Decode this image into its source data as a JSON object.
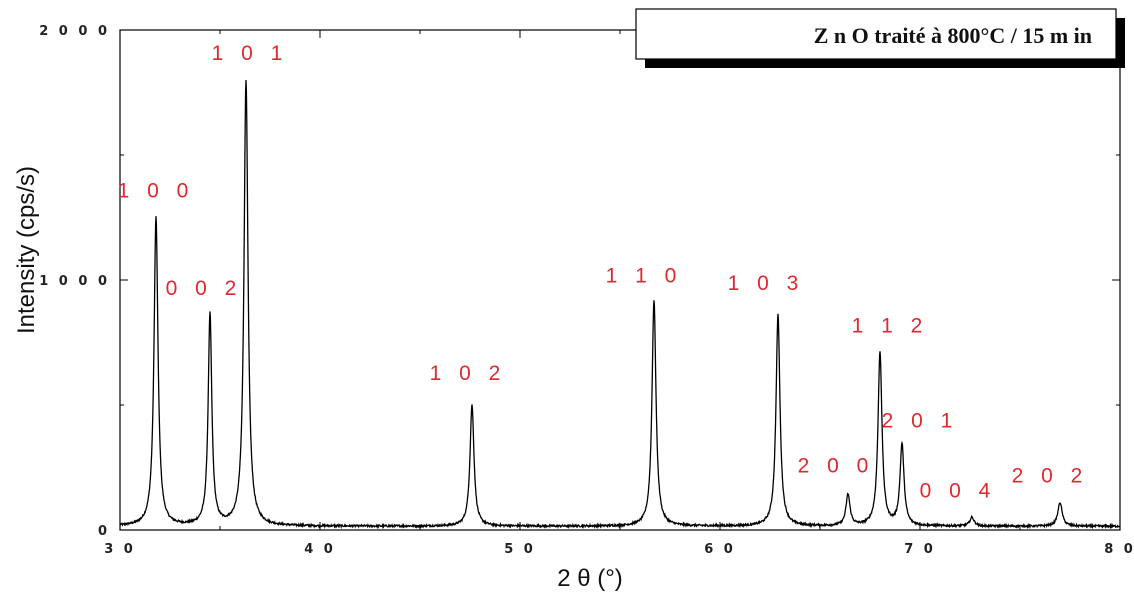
{
  "chart_data": {
    "type": "line",
    "title": "Z n O traité à 800°C / 15 m in",
    "xlabel": "2 θ  (°)",
    "ylabel": "Intensity (cps/s)",
    "xlim": [
      30,
      80
    ],
    "ylim": [
      0,
      2000
    ],
    "x_ticks": [
      30,
      40,
      50,
      60,
      70,
      80
    ],
    "x_tick_labels": [
      "3 0",
      "4 0",
      "5 0",
      "6 0",
      "7 0",
      "8 0"
    ],
    "y_ticks": [
      0,
      1000,
      2000
    ],
    "y_tick_labels": [
      "0",
      "1 0 0 0",
      "2 0 0 0"
    ],
    "grid": false,
    "baseline": 15,
    "peaks": [
      {
        "label": "100",
        "x": 31.8,
        "y": 1250,
        "width": 0.12
      },
      {
        "label": "002",
        "x": 34.5,
        "y": 860,
        "width": 0.11
      },
      {
        "label": "101",
        "x": 36.3,
        "y": 1800,
        "width": 0.12
      },
      {
        "label": "102",
        "x": 47.6,
        "y": 500,
        "width": 0.12
      },
      {
        "label": "110",
        "x": 56.7,
        "y": 920,
        "width": 0.12
      },
      {
        "label": "103",
        "x": 62.9,
        "y": 860,
        "width": 0.12
      },
      {
        "label": "200",
        "x": 66.4,
        "y": 140,
        "width": 0.12
      },
      {
        "label": "112",
        "x": 68.0,
        "y": 710,
        "width": 0.12
      },
      {
        "label": "201",
        "x": 69.1,
        "y": 340,
        "width": 0.12
      },
      {
        "label": "004",
        "x": 72.6,
        "y": 50,
        "width": 0.13
      },
      {
        "label": "202",
        "x": 77.0,
        "y": 110,
        "width": 0.13
      }
    ],
    "peak_labels": [
      {
        "text": "1 0 0",
        "x": 31.8,
        "y": 1330
      },
      {
        "text": "0 0 2",
        "x": 34.2,
        "y": 940
      },
      {
        "text": "1 0 1",
        "x": 36.5,
        "y": 1880
      },
      {
        "text": "1 0 2",
        "x": 47.4,
        "y": 600
      },
      {
        "text": "1 1 0",
        "x": 56.2,
        "y": 990
      },
      {
        "text": "1 0 3",
        "x": 62.3,
        "y": 960
      },
      {
        "text": "2 0 0",
        "x": 65.8,
        "y": 230
      },
      {
        "text": "1 1 2",
        "x": 68.5,
        "y": 790
      },
      {
        "text": "2 0 1",
        "x": 70.0,
        "y": 410
      },
      {
        "text": "0 0 4",
        "x": 71.9,
        "y": 130
      },
      {
        "text": "2 0 2",
        "x": 76.5,
        "y": 190
      }
    ],
    "legend": {
      "text": "Z n O traité à 800°C / 15 m in",
      "placement": "top-right"
    },
    "colors": {
      "line": "#000000",
      "peak_label": "#e0282e",
      "axis": "#000000"
    }
  }
}
